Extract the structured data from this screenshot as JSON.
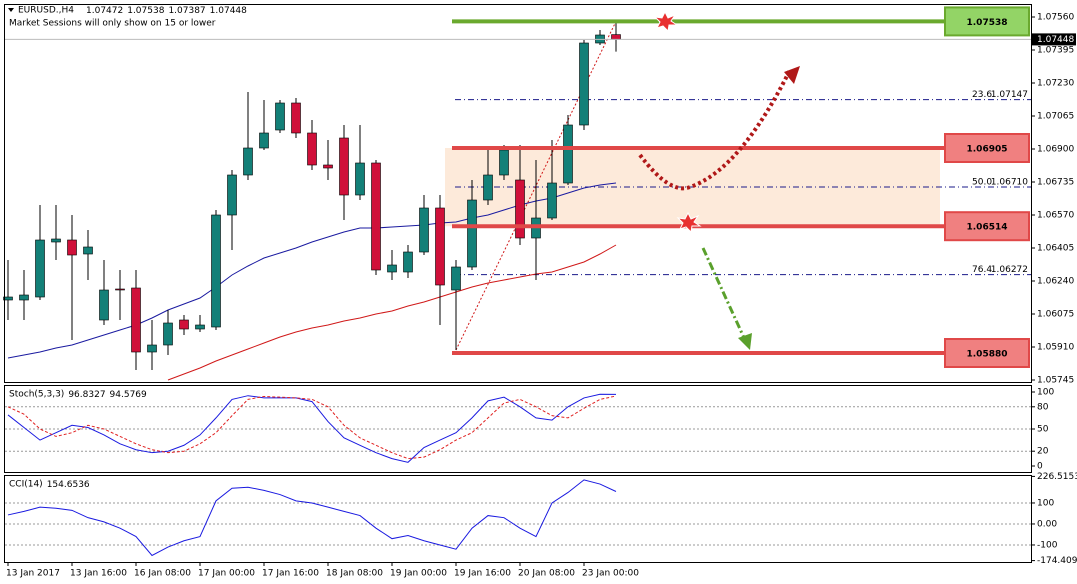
{
  "chart_data": [
    {
      "type": "candlestick",
      "title": "EURUSD.,H4",
      "subtitle": "Market Sessions will only show on 15 or lower",
      "categories": [
        "13 Jan 2017",
        null,
        null,
        null,
        "13 Jan 16:00",
        null,
        null,
        null,
        "16 Jan 08:00",
        null,
        null,
        null,
        "17 Jan 00:00",
        null,
        null,
        null,
        "17 Jan 16:00",
        null,
        null,
        null,
        "18 Jan 08:00",
        null,
        null,
        null,
        "19 Jan 00:00",
        null,
        null,
        null,
        "19 Jan 16:00",
        null,
        null,
        null,
        "20 Jan 08:00",
        null,
        null,
        null,
        "23 Jan 00:00",
        null,
        null
      ],
      "open": [
        1.06145,
        1.06145,
        1.0616,
        1.06435,
        1.06445,
        1.06375,
        1.06045,
        1.062,
        1.06205,
        1.05885,
        1.0592,
        1.06045,
        1.06,
        1.0601,
        1.0657,
        1.0677,
        1.06905,
        1.06995,
        1.0713,
        1.0698,
        1.0682,
        1.06955,
        1.0667,
        1.0683,
        1.06285,
        1.06285,
        1.06385,
        1.06605,
        1.06195,
        1.0631,
        1.06645,
        1.0677,
        1.06745,
        1.06455,
        1.06555,
        1.0673,
        1.0702,
        1.0743,
        1.07472
      ],
      "high": [
        1.06345,
        1.06295,
        1.0662,
        1.0662,
        1.0657,
        1.06495,
        1.06345,
        1.06295,
        1.06295,
        1.06045,
        1.06095,
        1.0607,
        1.0607,
        1.06595,
        1.06795,
        1.07185,
        1.07145,
        1.07145,
        1.07155,
        1.07045,
        1.06945,
        1.0702,
        1.0702,
        1.06845,
        1.06395,
        1.0642,
        1.0667,
        1.0667,
        1.06345,
        1.06745,
        1.06895,
        1.0692,
        1.0692,
        1.06845,
        1.06945,
        1.0707,
        1.07445,
        1.07495,
        1.07538
      ],
      "low": [
        1.06045,
        1.06045,
        1.06145,
        1.06345,
        1.05945,
        1.06245,
        1.0602,
        1.06045,
        1.05795,
        1.05795,
        1.0587,
        1.0597,
        1.05985,
        1.05995,
        1.06395,
        1.06745,
        1.06895,
        1.0698,
        1.06955,
        1.06795,
        1.06745,
        1.06545,
        1.06645,
        1.0627,
        1.06245,
        1.06255,
        1.0637,
        1.0602,
        1.05895,
        1.06295,
        1.0662,
        1.06745,
        1.0642,
        1.06245,
        1.06545,
        1.0672,
        1.06995,
        1.0742,
        1.07387
      ],
      "close": [
        1.0616,
        1.0617,
        1.06445,
        1.0645,
        1.0637,
        1.0641,
        1.06195,
        1.06195,
        1.05885,
        1.0592,
        1.0603,
        1.06,
        1.0602,
        1.0657,
        1.0677,
        1.06905,
        1.0698,
        1.0713,
        1.0698,
        1.0682,
        1.06805,
        1.0667,
        1.0683,
        1.06295,
        1.0632,
        1.06385,
        1.06605,
        1.0622,
        1.0631,
        1.06645,
        1.0677,
        1.06895,
        1.06455,
        1.06555,
        1.0673,
        1.0702,
        1.0743,
        1.0747,
        1.07448
      ],
      "close_label": "1.07448",
      "up_color": "#138078",
      "down_color": "#d0103a",
      "series": [
        {
          "color": "#1a1aa0",
          "values": [
            1.05855,
            1.0587,
            1.05885,
            1.05905,
            1.0592,
            1.05945,
            1.0597,
            1.05995,
            1.0602,
            1.06055,
            1.06095,
            1.06125,
            1.06155,
            1.0621,
            1.0627,
            1.06315,
            1.06355,
            1.0638,
            1.06405,
            1.06435,
            1.0646,
            1.06485,
            1.06505,
            1.06505,
            1.0651,
            1.06515,
            1.0652,
            1.0653,
            1.06535,
            1.06555,
            1.0657,
            1.06595,
            1.0662,
            1.0664,
            1.06655,
            1.0668,
            1.06705,
            1.0672,
            1.0673
          ]
        },
        {
          "color": "#d01818",
          "values": [
            null,
            null,
            null,
            null,
            null,
            null,
            null,
            null,
            null,
            null,
            1.05745,
            1.05775,
            1.05805,
            1.0584,
            1.0587,
            1.059,
            1.0593,
            1.0596,
            1.05985,
            1.06005,
            1.0602,
            1.0604,
            1.06055,
            1.06075,
            1.0609,
            1.06115,
            1.06135,
            1.0616,
            1.06185,
            1.0621,
            1.0623,
            1.06245,
            1.0626,
            1.06275,
            1.06285,
            1.0631,
            1.06335,
            1.06375,
            1.0642
          ]
        }
      ],
      "levels": [
        {
          "value": 1.07538,
          "color": "#6aa92e",
          "fill": "#93d466"
        },
        {
          "value": 1.06905,
          "color": "#e04848",
          "fill": "#f08080"
        },
        {
          "value": 1.06514,
          "color": "#e04848",
          "fill": "#f08080"
        },
        {
          "value": 1.0588,
          "label": "1.05880",
          "color": "#e04848",
          "fill": "#f08080"
        }
      ],
      "zone_color": "#fde6d3",
      "fibonacci": [
        {
          "level": "23.6",
          "value": 1.07147
        },
        {
          "level": "50.0",
          "value": 1.0671,
          "value_label": "1.06710"
        },
        {
          "level": "76.4",
          "value": 1.06272
        }
      ],
      "ylim": [
        1.05735,
        1.0762
      ],
      "yticks": [
        {
          "value": 1.0756,
          "label": "1.07560"
        },
        1.07395,
        {
          "value": 1.0723,
          "label": "1.07230"
        },
        1.07065,
        {
          "value": 1.069,
          "label": "1.06900"
        },
        1.06735,
        {
          "value": 1.0657,
          "label": "1.06570"
        },
        1.06405,
        {
          "value": 1.0624,
          "label": "1.06240"
        },
        1.06075,
        {
          "value": 1.0591,
          "label": "1.05910"
        },
        1.05745
      ]
    },
    {
      "type": "line",
      "title": "Stoch(5,3,3)",
      "series": [
        {
          "color": "#1a1ae0",
          "values": [
            69,
            52,
            35,
            45,
            55,
            52,
            42,
            30,
            22,
            18,
            20,
            28,
            42,
            65,
            90,
            95,
            92,
            92,
            92,
            87,
            60,
            38,
            28,
            18,
            10,
            5,
            25,
            35,
            45,
            65,
            88,
            93,
            80,
            65,
            62,
            80,
            92,
            97,
            96.8327
          ]
        },
        {
          "color": "#e02020",
          "dashed": true,
          "values": [
            80,
            70,
            50,
            40,
            45,
            55,
            50,
            40,
            30,
            22,
            18,
            20,
            30,
            45,
            68,
            90,
            94,
            93,
            92,
            90,
            80,
            55,
            38,
            28,
            18,
            10,
            12,
            22,
            35,
            45,
            65,
            85,
            90,
            80,
            68,
            65,
            78,
            90,
            94.5769
          ]
        }
      ],
      "ylim": [
        0,
        100
      ],
      "yticks": [
        100,
        80,
        50,
        20,
        0
      ]
    },
    {
      "type": "line",
      "title": "CCI(14)",
      "series": [
        {
          "color": "#1a1ae0",
          "values": [
            43,
            60,
            80,
            75,
            65,
            30,
            10,
            -20,
            -60,
            -150,
            -110,
            -80,
            -60,
            110,
            170,
            175,
            160,
            140,
            110,
            100,
            80,
            60,
            40,
            -20,
            -70,
            -55,
            -80,
            -100,
            -120,
            -20,
            40,
            30,
            -20,
            -60,
            100,
            150,
            210,
            190,
            154.6536
          ]
        }
      ],
      "ylim": [
        -174.4096,
        226.5153
      ],
      "yticks": [
        226.5153,
        100,
        {
          "value": 0,
          "label": "0.00"
        },
        -100,
        -174.4096
      ]
    }
  ]
}
